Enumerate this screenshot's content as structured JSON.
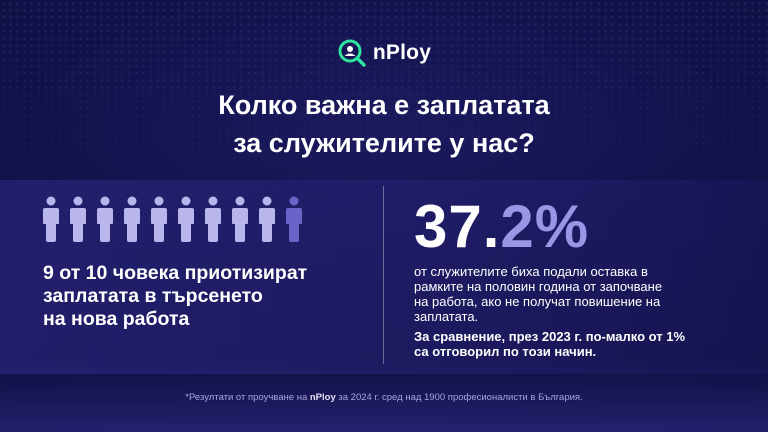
{
  "brand": {
    "name": "nPloy",
    "logo_icon": "search-magnifier-logo-icon",
    "accent": "#2ee59d"
  },
  "headline": {
    "line1": "Колко важна е заплатата",
    "line2": "за служителите у нас?"
  },
  "left_stat": {
    "people_total": 10,
    "people_highlighted": 9,
    "person_color": "#b9b6ee",
    "person_dim_color": "#6a64c9",
    "line1": "9 от 10 човека приотизират",
    "line2": "заплатата в търсенето",
    "line3": "на нова работа"
  },
  "right_stat": {
    "number_int": "37.",
    "number_dec": "2%",
    "desc_line1": "от служителите биха подали оставка в",
    "desc_line2": "рамките на половин година от започване",
    "desc_line3": "на работа, ако не получат повишение на",
    "desc_line4": "заплатата.",
    "compare_line1": "За сравнение, през 2023 г. по-малко от 1%",
    "compare_line2": "са отговорил по този начин."
  },
  "footnote": {
    "prefix": "*Резултати от проучване на ",
    "brand": "nPloy",
    "suffix": " за 2024 г. сред над 1900 професионалисти в България."
  }
}
